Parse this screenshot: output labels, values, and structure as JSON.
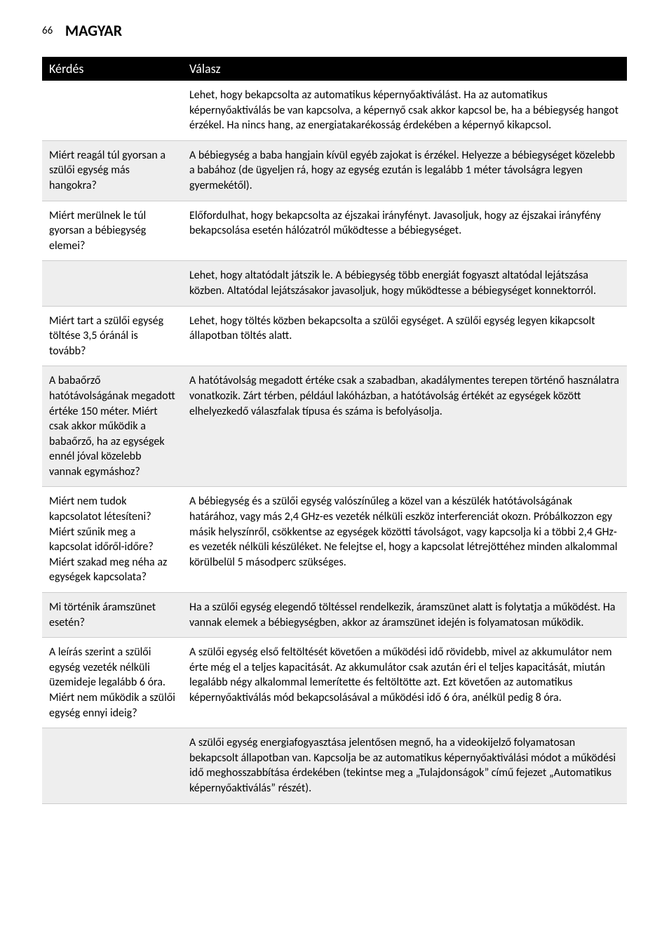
{
  "header": {
    "page_number": "66",
    "section": "MAGYAR"
  },
  "table": {
    "columns": [
      "Kérdés",
      "Válasz"
    ],
    "rows": [
      {
        "shaded": false,
        "q": "",
        "a": "Lehet, hogy bekapcsolta az automatikus képernyőaktiválást. Ha az automatikus képernyőaktiválás be van kapcsolva, a képernyő csak akkor kapcsol be, ha a bébiegység hangot érzékel. Ha nincs hang, az energiatakarékosság érdekében a képernyő kikapcsol."
      },
      {
        "shaded": true,
        "q": "Miért reagál túl gyorsan a szülői egység más hangokra?",
        "a": "A bébiegység a baba hangjain kívül egyéb zajokat is érzékel. Helyezze a bébiegységet közelebb a babához (de ügyeljen rá, hogy az egység ezután is legalább 1 méter távolságra legyen gyermekétől)."
      },
      {
        "shaded": false,
        "q": "Miért merülnek le túl gyorsan a bébiegység elemei?",
        "a": "Előfordulhat, hogy bekapcsolta az éjszakai irányfényt. Javasoljuk, hogy az éjszakai irányfény bekapcsolása esetén hálózatról működtesse a bébiegységet."
      },
      {
        "shaded": true,
        "q": "",
        "a": "Lehet, hogy altatódalt játszik le. A bébiegység több energiát fogyaszt altatódal lejátszása közben. Altatódal lejátszásakor javasoljuk, hogy működtesse a bébiegységet konnektorról."
      },
      {
        "shaded": false,
        "q": "Miért tart a szülői egység töltése 3,5 óránál is tovább?",
        "a": "Lehet, hogy töltés közben bekapcsolta a szülői egységet. A szülői egység legyen kikapcsolt állapotban töltés alatt."
      },
      {
        "shaded": true,
        "q": "A babaőrző hatótávolságának megadott értéke 150 méter. Miért csak akkor működik a babaőrző, ha az egységek ennél jóval közelebb vannak egymáshoz?",
        "a": "A hatótávolság megadott értéke csak a szabadban, akadálymentes terepen történő használatra vonatkozik. Zárt térben, például lakóházban, a hatótávolság értékét az egységek között elhelyezkedő válaszfalak típusa és száma is befolyásolja."
      },
      {
        "shaded": false,
        "q": "Miért nem tudok kapcsolatot létesíteni? Miért szűnik meg a kapcsolat időről-időre? Miért szakad meg néha az egységek kapcsolata?",
        "a": "A bébiegység és a szülői egység valószínűleg a közel van a készülék hatótávolságának határához, vagy más 2,4 GHz-es vezeték nélküli eszköz interferenciát okozn. Próbálkozzon egy másik helyszínről, csökkentse az egységek közötti távolságot, vagy kapcsolja ki a többi 2,4 GHz-es vezeték nélküli készüléket. Ne felejtse el, hogy a kapcsolat létrejöttéhez minden alkalommal körülbelül 5 másodperc szükséges."
      },
      {
        "shaded": true,
        "q": "Mi történik áramszünet esetén?",
        "a": "Ha a szülői egység elegendő töltéssel rendelkezik, áramszünet alatt is folytatja a működést. Ha vannak elemek a bébiegységben, akkor az áramszünet idején is folyamatosan működik."
      },
      {
        "shaded": false,
        "q": "A leírás szerint a szülői egység vezeték nélküli üzemideje legalább 6 óra. Miért nem működik a szülői egység ennyi ideig?",
        "a": "A szülői egység első feltöltését követően a működési idő rövidebb, mivel az akkumulátor nem érte még el a teljes kapacitását. Az akkumulátor csak azután éri el teljes kapacitását, miután legalább négy alkalommal lemerítette és feltöltötte azt. Ezt követően az automatikus képernyőaktiválás mód bekapcsolásával a működési idő 6 óra, anélkül pedig 8 óra."
      },
      {
        "shaded": true,
        "q": "",
        "a": "A szülői egység energiafogyasztása jelentősen megnő, ha a videokijelző folyamatosan bekapcsolt állapotban van. Kapcsolja be az automatikus képernyőaktiválási módot a működési idő meghosszabbítása érdekében (tekintse meg a „Tulajdonságok” című fejezet „Automatikus képernyőaktiválás” részét)."
      }
    ]
  }
}
